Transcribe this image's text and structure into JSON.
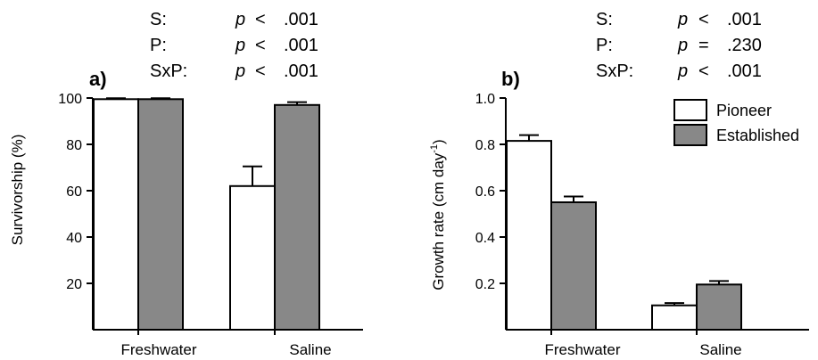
{
  "chart_data": [
    {
      "panel": "a)",
      "type": "bar",
      "ylabel": "Survivorship (%)",
      "ylim": [
        0,
        100
      ],
      "yticks": [
        "20",
        "40",
        "60",
        "80",
        "100"
      ],
      "categories": [
        "Freshwater",
        "Saline"
      ],
      "series": [
        {
          "name": "Pioneer",
          "color": "#ffffff",
          "values": [
            99.5,
            62
          ],
          "errors": [
            0.4,
            8.5
          ]
        },
        {
          "name": "Established",
          "color": "#888888",
          "values": [
            99.5,
            97
          ],
          "errors": [
            0.4,
            1.2
          ]
        }
      ],
      "stats": [
        {
          "label": "S:",
          "p": "p",
          "rel": "<",
          "value": ".001"
        },
        {
          "label": "P:",
          "p": "p",
          "rel": "<",
          "value": ".001"
        },
        {
          "label": "SxP:",
          "p": "p",
          "rel": "<",
          "value": ".001"
        }
      ],
      "legend": false
    },
    {
      "panel": "b)",
      "type": "bar",
      "ylabel": "Growth rate (cm day",
      "ylabel_sup": "-1",
      "ylabel_end": ")",
      "ylim": [
        0,
        1.0
      ],
      "yticks": [
        "0.2",
        "0.4",
        "0.6",
        "0.8",
        "1.0"
      ],
      "categories": [
        "Freshwater",
        "Saline"
      ],
      "series": [
        {
          "name": "Pioneer",
          "color": "#ffffff",
          "values": [
            0.815,
            0.105
          ],
          "errors": [
            0.025,
            0.01
          ]
        },
        {
          "name": "Established",
          "color": "#888888",
          "values": [
            0.55,
            0.195
          ],
          "errors": [
            0.025,
            0.015
          ]
        }
      ],
      "stats": [
        {
          "label": "S:",
          "p": "p",
          "rel": "<",
          "value": ".001"
        },
        {
          "label": "P:",
          "p": "p",
          "rel": "=",
          "value": ".230"
        },
        {
          "label": "SxP:",
          "p": "p",
          "rel": "<",
          "value": ".001"
        }
      ],
      "legend": true
    }
  ]
}
